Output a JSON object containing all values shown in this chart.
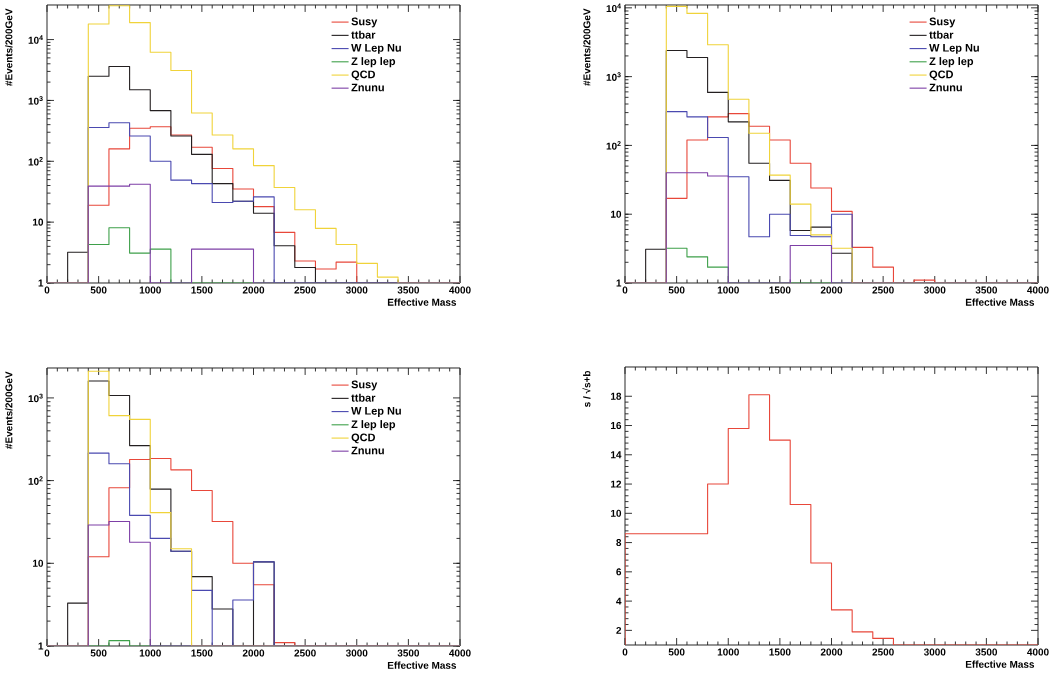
{
  "chart_data": [
    {
      "type": "histogram",
      "bins": [
        0,
        200,
        400,
        600,
        800,
        1000,
        1200,
        1400,
        1600,
        1800,
        2000,
        2200,
        2400,
        2600,
        2800,
        3000,
        3200,
        3400,
        3600,
        3800,
        4000
      ],
      "xlabel": "Effective Mass",
      "ylabel": "#Events/200GeV",
      "log": true,
      "legend": "top right",
      "xlim": [
        0,
        4000
      ],
      "ylim": [
        1,
        37000
      ],
      "xticks": [
        0,
        500,
        1000,
        1500,
        2000,
        2500,
        3000,
        3500,
        4000
      ],
      "yticks": [
        1,
        10,
        {
          "value": 100,
          "label": "10$^{2}$"
        },
        {
          "value": 1000,
          "label": "10$^{3}$"
        },
        {
          "value": 10000,
          "label": "10$^{4}$"
        }
      ],
      "series": [
        {
          "name": "Susy",
          "color": "#e8473a",
          "values": [
            null,
            null,
            19,
            160,
            350,
            370,
            270,
            170,
            76,
            35,
            18,
            6.8,
            2.3,
            1.7,
            2.2,
            null,
            null,
            null,
            null,
            null
          ]
        },
        {
          "name": "ttbar",
          "color": "#231f20",
          "values": [
            null,
            3.2,
            2500,
            3600,
            1500,
            680,
            260,
            130,
            43,
            22,
            14,
            4.1,
            1.8,
            null,
            null,
            null,
            null,
            null,
            null,
            null
          ]
        },
        {
          "name": "W Lep Nu",
          "color": "#4a49b0",
          "values": [
            null,
            null,
            360,
            430,
            260,
            100,
            49,
            43,
            21,
            22,
            26,
            null,
            null,
            null,
            null,
            null,
            null,
            null,
            null,
            null
          ]
        },
        {
          "name": "Z lep lep",
          "color": "#3ea04a",
          "values": [
            null,
            null,
            4.3,
            8.1,
            3.1,
            3.6,
            null,
            null,
            null,
            null,
            null,
            null,
            null,
            null,
            null,
            null,
            null,
            null,
            null,
            null
          ]
        },
        {
          "name": "QCD",
          "color": "#f0d33a",
          "values": [
            null,
            null,
            18000,
            36000,
            19000,
            6200,
            3100,
            620,
            270,
            160,
            85,
            37,
            16,
            7.9,
            4.3,
            2.1,
            1.25,
            null,
            null,
            null
          ]
        },
        {
          "name": "Znunu",
          "color": "#7d3fa6",
          "values": [
            null,
            null,
            39,
            39,
            42,
            null,
            null,
            3.6,
            3.6,
            3.6,
            null,
            null,
            null,
            null,
            null,
            null,
            null,
            null,
            null,
            null
          ]
        }
      ]
    },
    {
      "type": "histogram",
      "bins": [
        0,
        200,
        400,
        600,
        800,
        1000,
        1200,
        1400,
        1600,
        1800,
        2000,
        2200,
        2400,
        2600,
        2800,
        3000,
        3200,
        3400,
        3600,
        3800,
        4000
      ],
      "xlabel": "Effective Mass",
      "ylabel": "#Events/200GeV",
      "log": true,
      "legend": "top right",
      "xlim": [
        0,
        4000
      ],
      "ylim": [
        1,
        11000
      ],
      "xticks": [
        0,
        500,
        1000,
        1500,
        2000,
        2500,
        3000,
        3500,
        4000
      ],
      "yticks": [
        1,
        10,
        {
          "value": 100,
          "label": "10$^{2}$"
        },
        {
          "value": 1000,
          "label": "10$^{3}$"
        },
        {
          "value": 10000,
          "label": "10$^{4}$"
        }
      ],
      "series": [
        {
          "name": "Susy",
          "color": "#e8473a",
          "values": [
            null,
            null,
            17,
            120,
            260,
            290,
            190,
            120,
            55,
            24,
            11,
            3.3,
            1.7,
            null,
            1.1,
            null,
            null,
            null,
            null,
            null
          ]
        },
        {
          "name": "ttbar",
          "color": "#231f20",
          "values": [
            null,
            3.1,
            2400,
            1900,
            590,
            220,
            55,
            31,
            5.8,
            6.5,
            2.7,
            null,
            null,
            null,
            null,
            null,
            null,
            null,
            null,
            null
          ]
        },
        {
          "name": "W Lep Nu",
          "color": "#4a49b0",
          "values": [
            null,
            null,
            310,
            260,
            130,
            35,
            4.7,
            10,
            4.9,
            4.7,
            10,
            null,
            null,
            null,
            null,
            null,
            null,
            null,
            null,
            null
          ]
        },
        {
          "name": "Z lep lep",
          "color": "#3ea04a",
          "values": [
            null,
            null,
            3.2,
            2.4,
            1.7,
            null,
            null,
            null,
            null,
            null,
            null,
            null,
            null,
            null,
            null,
            null,
            null,
            null,
            null,
            null
          ]
        },
        {
          "name": "QCD",
          "color": "#f0d33a",
          "values": [
            null,
            null,
            10500,
            8300,
            2900,
            470,
            150,
            37,
            14,
            5,
            3.2,
            null,
            null,
            null,
            null,
            null,
            null,
            null,
            null,
            null
          ]
        },
        {
          "name": "Znunu",
          "color": "#7d3fa6",
          "values": [
            null,
            null,
            40,
            40,
            36,
            null,
            null,
            null,
            3.5,
            3.5,
            null,
            null,
            null,
            null,
            null,
            null,
            null,
            null,
            null,
            null
          ]
        }
      ]
    },
    {
      "type": "histogram",
      "bins": [
        0,
        200,
        400,
        600,
        800,
        1000,
        1200,
        1400,
        1600,
        1800,
        2000,
        2200,
        2400,
        2600,
        2800,
        3000,
        3200,
        3400,
        3600,
        3800,
        4000
      ],
      "xlabel": "Effective Mass",
      "ylabel": "#Events/200GeV",
      "log": true,
      "legend": "top right",
      "xlim": [
        0,
        4000
      ],
      "ylim": [
        1,
        2300
      ],
      "xticks": [
        0,
        500,
        1000,
        1500,
        2000,
        2500,
        3000,
        3500,
        4000
      ],
      "yticks": [
        1,
        10,
        {
          "value": 100,
          "label": "10$^{2}$"
        },
        {
          "value": 1000,
          "label": "10$^{3}$"
        }
      ],
      "series": [
        {
          "name": "Susy",
          "color": "#e8473a",
          "values": [
            null,
            null,
            12,
            82,
            180,
            185,
            135,
            76,
            32,
            10,
            5.5,
            1.1,
            null,
            null,
            null,
            null,
            null,
            null,
            null,
            null
          ]
        },
        {
          "name": "ttbar",
          "color": "#231f20",
          "values": [
            null,
            3.3,
            1600,
            1070,
            265,
            79,
            14,
            6.9,
            2.8,
            null,
            10.4,
            null,
            null,
            null,
            null,
            null,
            null,
            null,
            null,
            null
          ]
        },
        {
          "name": "W Lep Nu",
          "color": "#4a49b0",
          "values": [
            null,
            null,
            215,
            160,
            38,
            20,
            14,
            4.7,
            null,
            3.6,
            10.4,
            null,
            null,
            null,
            null,
            null,
            null,
            null,
            null,
            null
          ]
        },
        {
          "name": "Z lep lep",
          "color": "#3ea04a",
          "values": [
            null,
            null,
            null,
            1.16,
            null,
            null,
            null,
            null,
            null,
            null,
            null,
            null,
            null,
            null,
            null,
            null,
            null,
            null,
            null,
            null
          ]
        },
        {
          "name": "QCD",
          "color": "#f0d33a",
          "values": [
            null,
            null,
            2100,
            610,
            550,
            41,
            15,
            null,
            null,
            null,
            null,
            null,
            null,
            null,
            null,
            null,
            null,
            null,
            null,
            null
          ]
        },
        {
          "name": "Znunu",
          "color": "#7d3fa6",
          "values": [
            null,
            null,
            29,
            32,
            18,
            null,
            null,
            null,
            null,
            null,
            null,
            null,
            null,
            null,
            null,
            null,
            null,
            null,
            null,
            null
          ]
        }
      ]
    },
    {
      "type": "histogram",
      "bins": [
        0,
        200,
        400,
        600,
        800,
        1000,
        1200,
        1400,
        1600,
        1800,
        2000,
        2200,
        2400,
        2600,
        2800,
        3000,
        3200,
        3400,
        3600,
        3800,
        4000
      ],
      "xlabel": "Effective Mass",
      "ylabel": "s / √s+b",
      "xlim": [
        0,
        4000
      ],
      "ylim": [
        1,
        20
      ],
      "xticks": [
        0,
        500,
        1000,
        1500,
        2000,
        2500,
        3000,
        3500,
        4000
      ],
      "yticks": [
        2,
        4,
        6,
        8,
        10,
        12,
        14,
        16,
        18
      ],
      "series": [
        {
          "color": "#e8473a",
          "values": [
            8.6,
            8.6,
            8.6,
            8.6,
            12,
            15.8,
            18.1,
            15,
            10.6,
            6.6,
            3.4,
            1.9,
            1.45,
            null,
            null,
            null,
            null,
            null,
            null,
            null
          ]
        }
      ]
    }
  ]
}
